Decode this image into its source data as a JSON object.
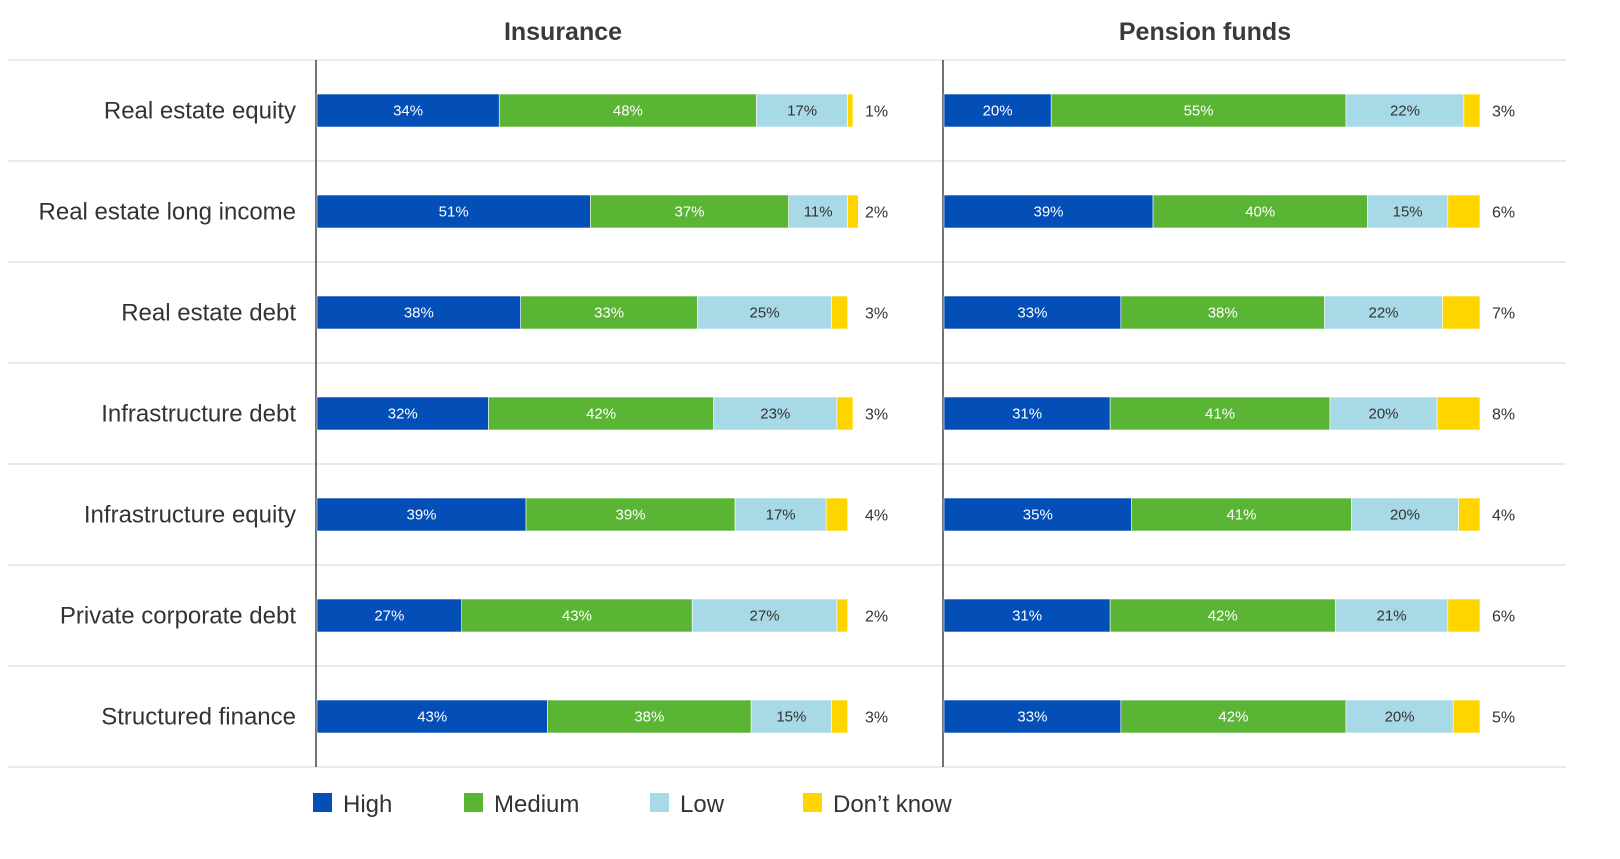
{
  "chart_data": {
    "type": "bar",
    "orientation": "horizontal",
    "stacked": true,
    "categories": [
      "Real estate equity",
      "Real estate long income",
      "Real estate debt",
      "Infrastructure debt",
      "Infrastructure equity",
      "Private corporate debt",
      "Structured finance"
    ],
    "panels": [
      {
        "title": "Insurance",
        "series": [
          {
            "name": "High",
            "values": [
              34,
              51,
              38,
              32,
              39,
              27,
              43
            ]
          },
          {
            "name": "Medium",
            "values": [
              48,
              37,
              33,
              42,
              39,
              43,
              38
            ]
          },
          {
            "name": "Low",
            "values": [
              17,
              11,
              25,
              23,
              17,
              27,
              15
            ]
          },
          {
            "name": "Don’t know",
            "values": [
              1,
              2,
              3,
              3,
              4,
              2,
              3
            ]
          }
        ]
      },
      {
        "title": "Pension funds",
        "series": [
          {
            "name": "High",
            "values": [
              20,
              39,
              33,
              31,
              35,
              31,
              33
            ]
          },
          {
            "name": "Medium",
            "values": [
              55,
              40,
              38,
              41,
              41,
              42,
              42
            ]
          },
          {
            "name": "Low",
            "values": [
              22,
              15,
              22,
              20,
              20,
              21,
              20
            ]
          },
          {
            "name": "Don’t know",
            "values": [
              3,
              6,
              7,
              8,
              4,
              6,
              5
            ]
          }
        ]
      }
    ],
    "value_suffix": "%",
    "xlim": [
      0,
      100
    ],
    "legend": {
      "placement": "bottom",
      "entries": [
        {
          "name": "High",
          "color": "#034EB7"
        },
        {
          "name": "Medium",
          "color": "#5AB535"
        },
        {
          "name": "Low",
          "color": "#A8D9E6"
        },
        {
          "name": "Don’t know",
          "color": "#FFD500"
        }
      ]
    },
    "label_colors": {
      "on_dark": "#ffffff",
      "on_light": "#333333"
    },
    "grid": false
  }
}
